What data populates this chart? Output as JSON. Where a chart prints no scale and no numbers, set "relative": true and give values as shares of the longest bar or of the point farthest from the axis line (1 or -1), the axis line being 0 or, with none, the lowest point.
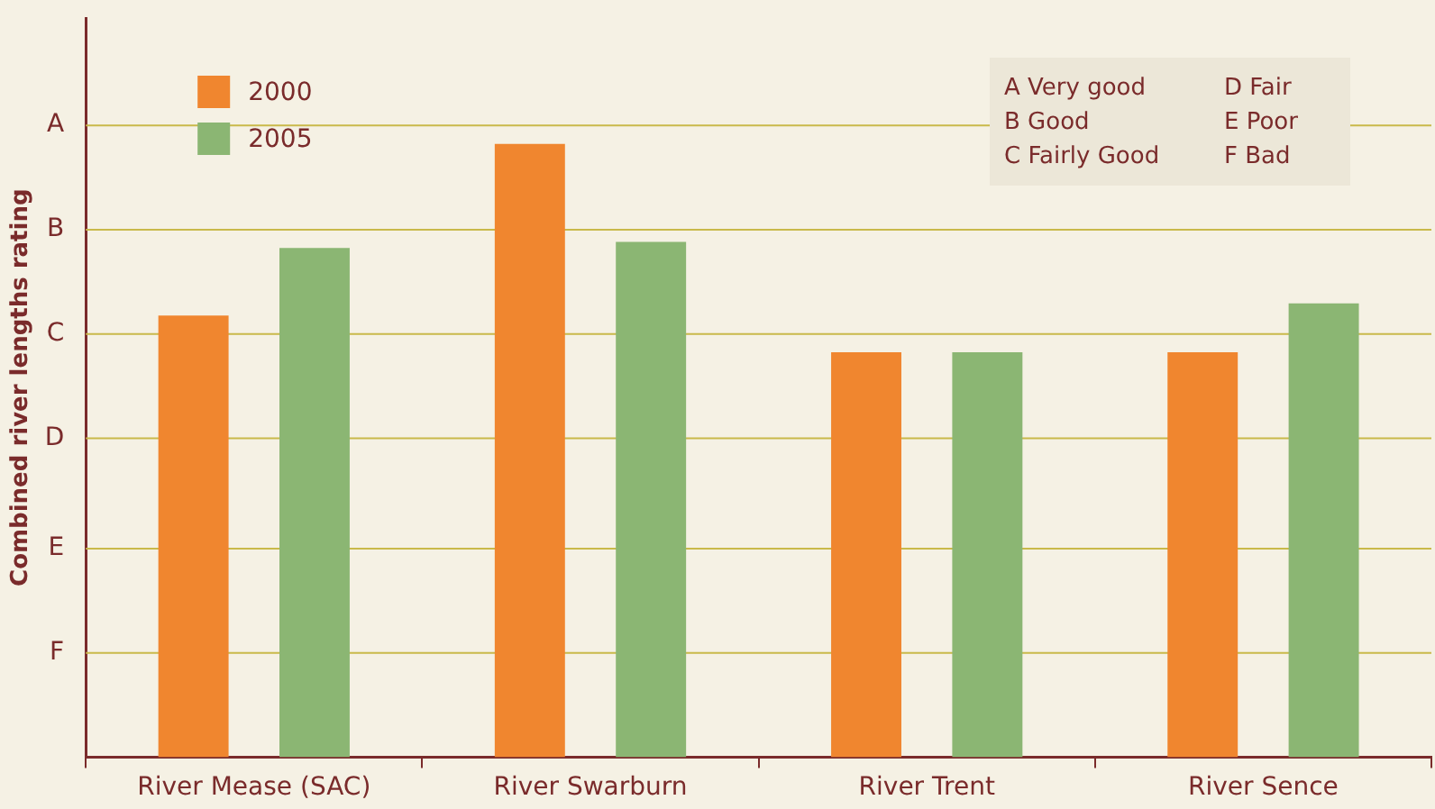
{
  "chart_data": {
    "type": "bar",
    "ylabel": "Combined river lengths rating",
    "relative": true,
    "categories": [
      "River Mease (SAC)",
      "River Swarburn",
      "River Trent",
      "River Sence"
    ],
    "series": [
      {
        "name": "2000",
        "color": "#f0862f",
        "values": [
          0.72,
          1,
          0.66,
          0.66
        ]
      },
      {
        "name": "2005",
        "color": "#8bb673",
        "values": [
          0.83,
          0.84,
          0.66,
          0.74
        ]
      }
    ],
    "ref_lines": [
      {
        "axis": "y",
        "value": 0.17,
        "label": "F",
        "color": "#c9b94a"
      },
      {
        "axis": "y",
        "value": 0.34,
        "label": "E",
        "color": "#c9b94a"
      },
      {
        "axis": "y",
        "value": 0.52,
        "label": "D",
        "color": "#c9b94a"
      },
      {
        "axis": "y",
        "value": 0.69,
        "label": "C",
        "color": "#c9b94a"
      },
      {
        "axis": "y",
        "value": 0.86,
        "label": "B",
        "color": "#c9b94a"
      },
      {
        "axis": "y",
        "value": 1.03,
        "label": "A",
        "color": "#c9b94a"
      }
    ],
    "legend": "top left",
    "annotations": [
      "A Very good",
      "B Good",
      "C Fairly Good",
      "D Fair",
      "E Poor",
      "F Bad"
    ]
  }
}
